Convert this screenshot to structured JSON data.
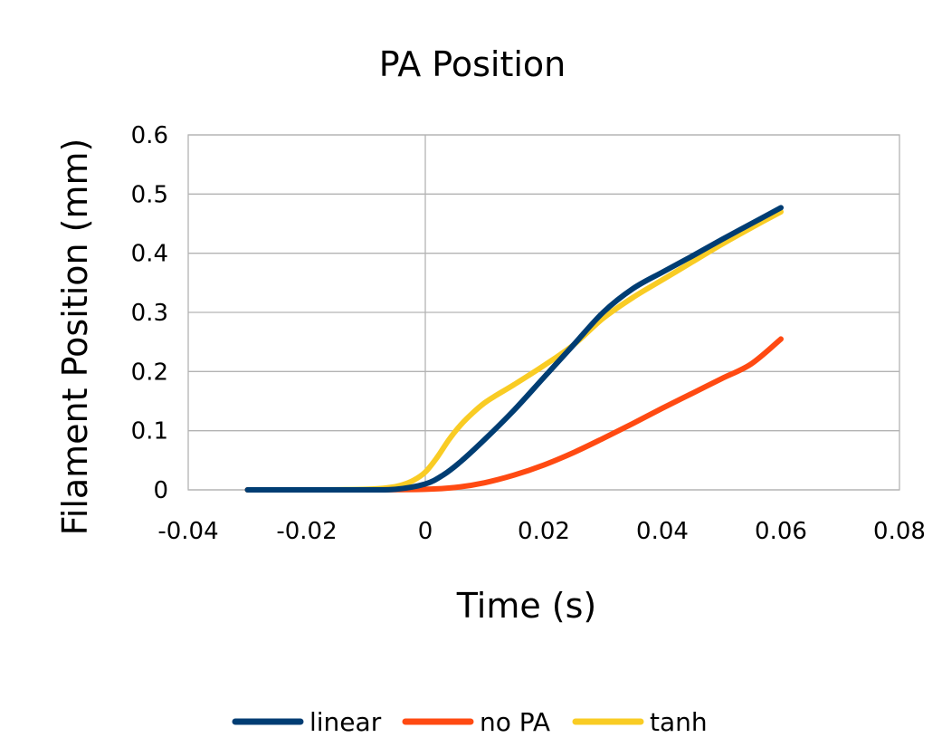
{
  "chart_data": {
    "type": "line",
    "title": "PA Position",
    "xlabel": "Time (s)",
    "ylabel": "Filament Position (mm)",
    "xlim": [
      -0.04,
      0.08
    ],
    "ylim": [
      0,
      0.6
    ],
    "xticks": [
      -0.04,
      -0.02,
      0,
      0.02,
      0.04,
      0.06,
      0.08
    ],
    "xtick_labels": [
      "-0.04",
      "-0.02",
      "0",
      "0.02",
      "0.04",
      "0.06",
      "0.08"
    ],
    "yticks": [
      0,
      0.1,
      0.2,
      0.3,
      0.4,
      0.5,
      0.6
    ],
    "ytick_labels": [
      "0",
      "0.1",
      "0.2",
      "0.3",
      "0.4",
      "0.5",
      "0.6"
    ],
    "grid": true,
    "legend_position": "bottom",
    "series": [
      {
        "name": "tanh",
        "color": "#f9cc24",
        "x": [
          -0.03,
          -0.02,
          -0.01,
          -0.006,
          -0.004,
          -0.002,
          0,
          0.002,
          0.004,
          0.006,
          0.008,
          0.01,
          0.012,
          0.015,
          0.02,
          0.025,
          0.03,
          0.035,
          0.04,
          0.045,
          0.05,
          0.055,
          0.06
        ],
        "y": [
          0,
          0,
          0.001,
          0.004,
          0.008,
          0.016,
          0.03,
          0.055,
          0.085,
          0.11,
          0.13,
          0.147,
          0.16,
          0.178,
          0.21,
          0.245,
          0.29,
          0.325,
          0.355,
          0.385,
          0.415,
          0.443,
          0.47
        ]
      },
      {
        "name": "no PA",
        "color": "#ff4a12",
        "x": [
          -0.03,
          -0.02,
          -0.01,
          0,
          0.005,
          0.01,
          0.015,
          0.02,
          0.025,
          0.03,
          0.035,
          0.04,
          0.045,
          0.05,
          0.055,
          0.06
        ],
        "y": [
          0,
          0,
          0,
          0.001,
          0.004,
          0.012,
          0.025,
          0.042,
          0.063,
          0.087,
          0.112,
          0.138,
          0.163,
          0.188,
          0.213,
          0.255
        ]
      },
      {
        "name": "linear",
        "color": "#003d73",
        "x": [
          -0.03,
          -0.02,
          -0.01,
          -0.005,
          0,
          0.003,
          0.006,
          0.01,
          0.015,
          0.02,
          0.025,
          0.03,
          0.035,
          0.04,
          0.045,
          0.05,
          0.055,
          0.06
        ],
        "y": [
          0,
          0,
          0,
          0.001,
          0.01,
          0.025,
          0.048,
          0.085,
          0.135,
          0.19,
          0.245,
          0.3,
          0.34,
          0.368,
          0.395,
          0.423,
          0.45,
          0.477
        ]
      }
    ],
    "legend_order": [
      "linear",
      "no PA",
      "tanh"
    ]
  }
}
